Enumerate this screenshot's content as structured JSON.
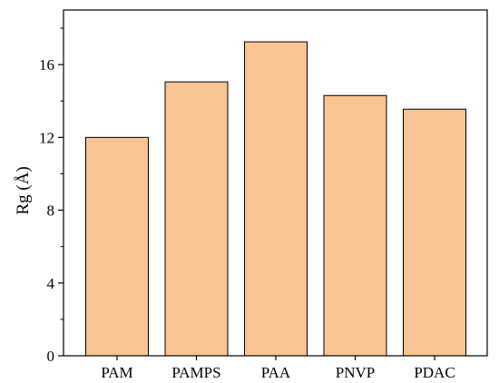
{
  "chart_data": {
    "type": "bar",
    "categories": [
      "PAM",
      "PAMPS",
      "PAA",
      "PNVP",
      "PDAC"
    ],
    "values": [
      12.0,
      15.05,
      17.25,
      14.3,
      13.55
    ],
    "title": "",
    "xlabel": "",
    "ylabel": "Rg (Å)",
    "ylim": [
      0,
      19.0
    ],
    "yticks": [
      0,
      4,
      8,
      12,
      16
    ],
    "yticks_minor": [
      2,
      6,
      10,
      14,
      18
    ],
    "grid": false,
    "bar_color": "#F8C493",
    "bar_edge_color": "#000000"
  }
}
